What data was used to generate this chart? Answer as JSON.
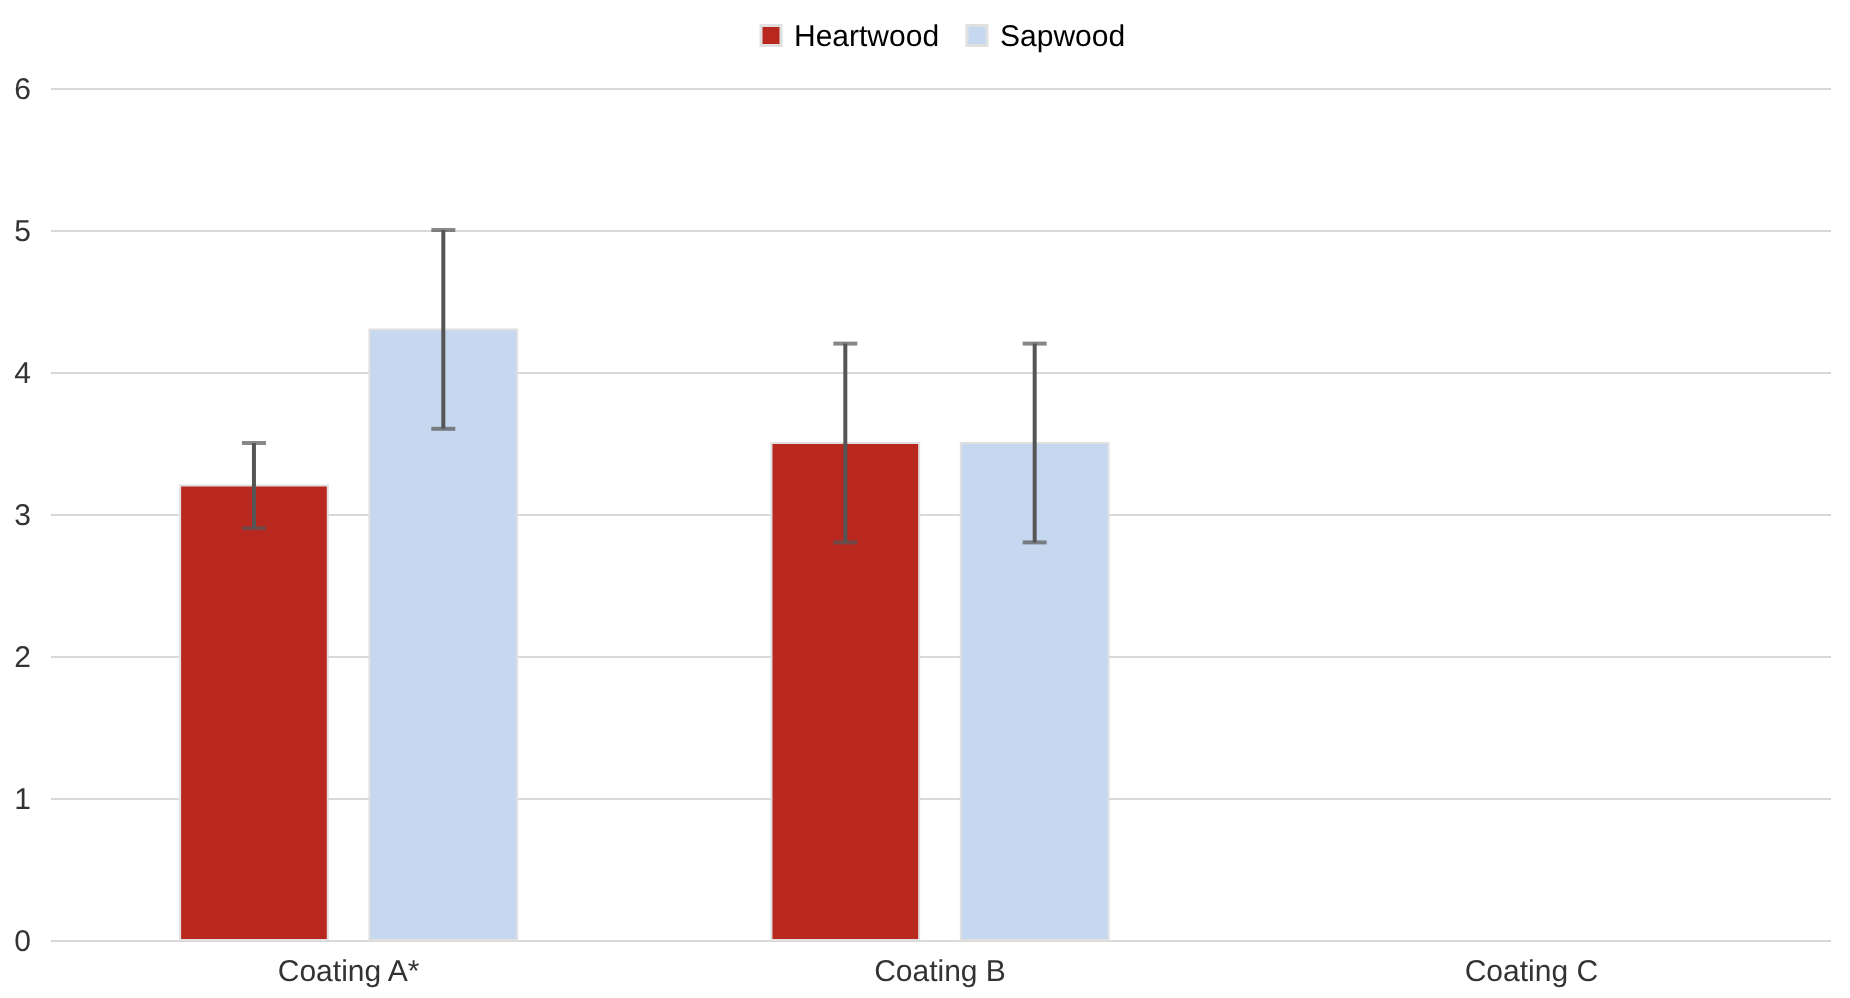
{
  "chart_data": {
    "type": "bar",
    "categories": [
      "Coating A*",
      "Coating B",
      "Coating C"
    ],
    "series": [
      {
        "name": "Heartwood",
        "color": "#b8281e",
        "values": [
          3.2,
          3.5,
          null
        ],
        "errors": [
          0.3,
          0.7,
          null
        ]
      },
      {
        "name": "Sapwood",
        "color": "#c6d8ef",
        "values": [
          4.3,
          3.5,
          null
        ],
        "errors": [
          0.7,
          0.7,
          null
        ]
      }
    ],
    "ylim": [
      0,
      6
    ],
    "yticks": [
      0,
      1,
      2,
      3,
      4,
      5,
      6
    ],
    "grid": "y",
    "legend": "top"
  }
}
